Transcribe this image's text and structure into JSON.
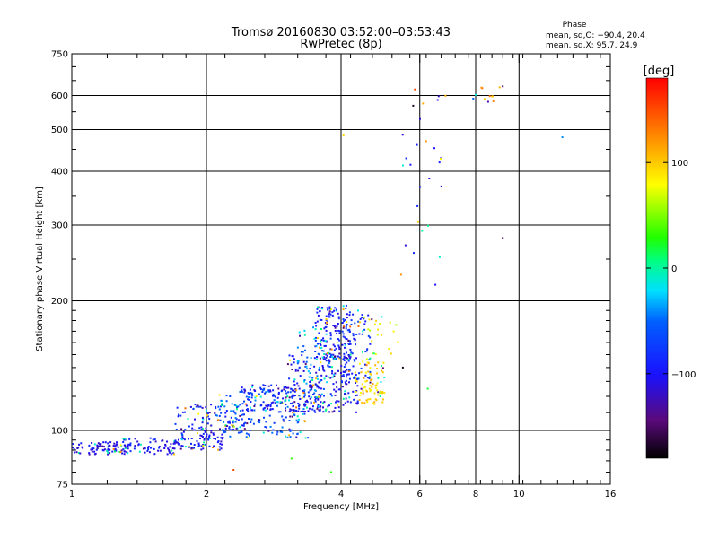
{
  "chart_data": {
    "type": "scatter",
    "title": "Tromsø 20160830 03:52:00–03:53:43",
    "subtitle": "RwPretec (8p)",
    "xlabel": "Frequency [MHz]",
    "ylabel": "Stationary phase Virtual Height [km]",
    "x_scale": "log",
    "y_scale": "log",
    "xlim": [
      1,
      16
    ],
    "ylim": [
      75,
      750
    ],
    "x_ticks": [
      {
        "value": 1,
        "label": "1"
      },
      {
        "value": 2,
        "label": "2"
      },
      {
        "value": 4,
        "label": "4"
      },
      {
        "value": 6,
        "label": "6"
      },
      {
        "value": 8,
        "label": "8"
      },
      {
        "value": 10,
        "label": "10"
      },
      {
        "value": 16,
        "label": "16"
      }
    ],
    "y_ticks": [
      {
        "value": 75,
        "label": "75"
      },
      {
        "value": 100,
        "label": "100"
      },
      {
        "value": 200,
        "label": "200"
      },
      {
        "value": 300,
        "label": "300"
      },
      {
        "value": 400,
        "label": "400"
      },
      {
        "value": 500,
        "label": "500"
      },
      {
        "value": 600,
        "label": "600"
      },
      {
        "value": 750,
        "label": "750"
      }
    ],
    "grid_x": [
      2,
      4,
      6,
      8,
      10
    ],
    "grid_y": [
      100,
      200,
      300,
      400,
      500,
      600
    ],
    "phase_header": "Phase",
    "stats": [
      "mean, sd,O: −90.4, 20.4",
      "mean, sd,X:  95.7, 24.9"
    ],
    "colorbar": {
      "label": "[deg]",
      "range": [
        -180,
        180
      ],
      "ticks": [
        {
          "value": 100,
          "label": "100"
        },
        {
          "value": 0,
          "label": "0"
        },
        {
          "value": -100,
          "label": "−100"
        }
      ]
    },
    "clusters": [
      {
        "x": [
          1.0,
          1.32
        ],
        "y": [
          88,
          94
        ],
        "phase": -105,
        "count": 90
      },
      {
        "x": [
          1.3,
          1.75
        ],
        "y": [
          88,
          96
        ],
        "phase": -100,
        "count": 80
      },
      {
        "x": [
          1.75,
          2.2
        ],
        "y": [
          90,
          100
        ],
        "phase": -95,
        "count": 80
      },
      {
        "x": [
          1.7,
          2.5
        ],
        "y": [
          100,
          115
        ],
        "phase": -90,
        "count": 90
      },
      {
        "x": [
          2.1,
          3.4
        ],
        "y": [
          96,
          125
        ],
        "phase": -60,
        "count": 180
      },
      {
        "x": [
          2.4,
          3.6
        ],
        "y": [
          110,
          128
        ],
        "phase": -95,
        "count": 120
      },
      {
        "x": [
          3.0,
          4.4
        ],
        "y": [
          110,
          150
        ],
        "phase": -100,
        "count": 200
      },
      {
        "x": [
          3.5,
          4.2
        ],
        "y": [
          145,
          195
        ],
        "phase": -95,
        "count": 150
      },
      {
        "x": [
          3.2,
          3.9
        ],
        "y": [
          120,
          175
        ],
        "phase": -40,
        "count": 60
      },
      {
        "x": [
          4.0,
          4.7
        ],
        "y": [
          130,
          190
        ],
        "phase": -80,
        "count": 80
      },
      {
        "x": [
          4.3,
          5.0
        ],
        "y": [
          115,
          145
        ],
        "phase": 95,
        "count": 80
      },
      {
        "x": [
          4.5,
          5.4
        ],
        "y": [
          150,
          185
        ],
        "phase": 80,
        "count": 20
      },
      {
        "x": [
          5.4,
          6.8
        ],
        "y": [
          240,
          620
        ],
        "phase": -100,
        "count": 20
      },
      {
        "x": [
          6.8,
          9.3
        ],
        "y": [
          580,
          630
        ],
        "phase": 120,
        "count": 10
      }
    ],
    "points": [
      {
        "x": 4.05,
        "y": 485,
        "phase": 95
      },
      {
        "x": 5.45,
        "y": 230,
        "phase": 120
      },
      {
        "x": 5.85,
        "y": 620,
        "phase": 150
      },
      {
        "x": 5.8,
        "y": 568,
        "phase": -170
      },
      {
        "x": 6.1,
        "y": 575,
        "phase": 110
      },
      {
        "x": 6.2,
        "y": 470,
        "phase": 120
      },
      {
        "x": 6.3,
        "y": 385,
        "phase": -110
      },
      {
        "x": 6.25,
        "y": 125,
        "phase": 20
      },
      {
        "x": 5.95,
        "y": 305,
        "phase": 100
      },
      {
        "x": 9.2,
        "y": 630,
        "phase": -150
      },
      {
        "x": 9.2,
        "y": 280,
        "phase": -150
      },
      {
        "x": 12.5,
        "y": 480,
        "phase": -40
      },
      {
        "x": 7.9,
        "y": 590,
        "phase": -50
      },
      {
        "x": 8.6,
        "y": 598,
        "phase": 130
      },
      {
        "x": 2.3,
        "y": 81,
        "phase": 150
      },
      {
        "x": 3.8,
        "y": 80,
        "phase": 30
      },
      {
        "x": 3.1,
        "y": 86,
        "phase": 30
      },
      {
        "x": 5.5,
        "y": 140,
        "phase": -170
      },
      {
        "x": 6.5,
        "y": 218,
        "phase": -100
      }
    ]
  }
}
